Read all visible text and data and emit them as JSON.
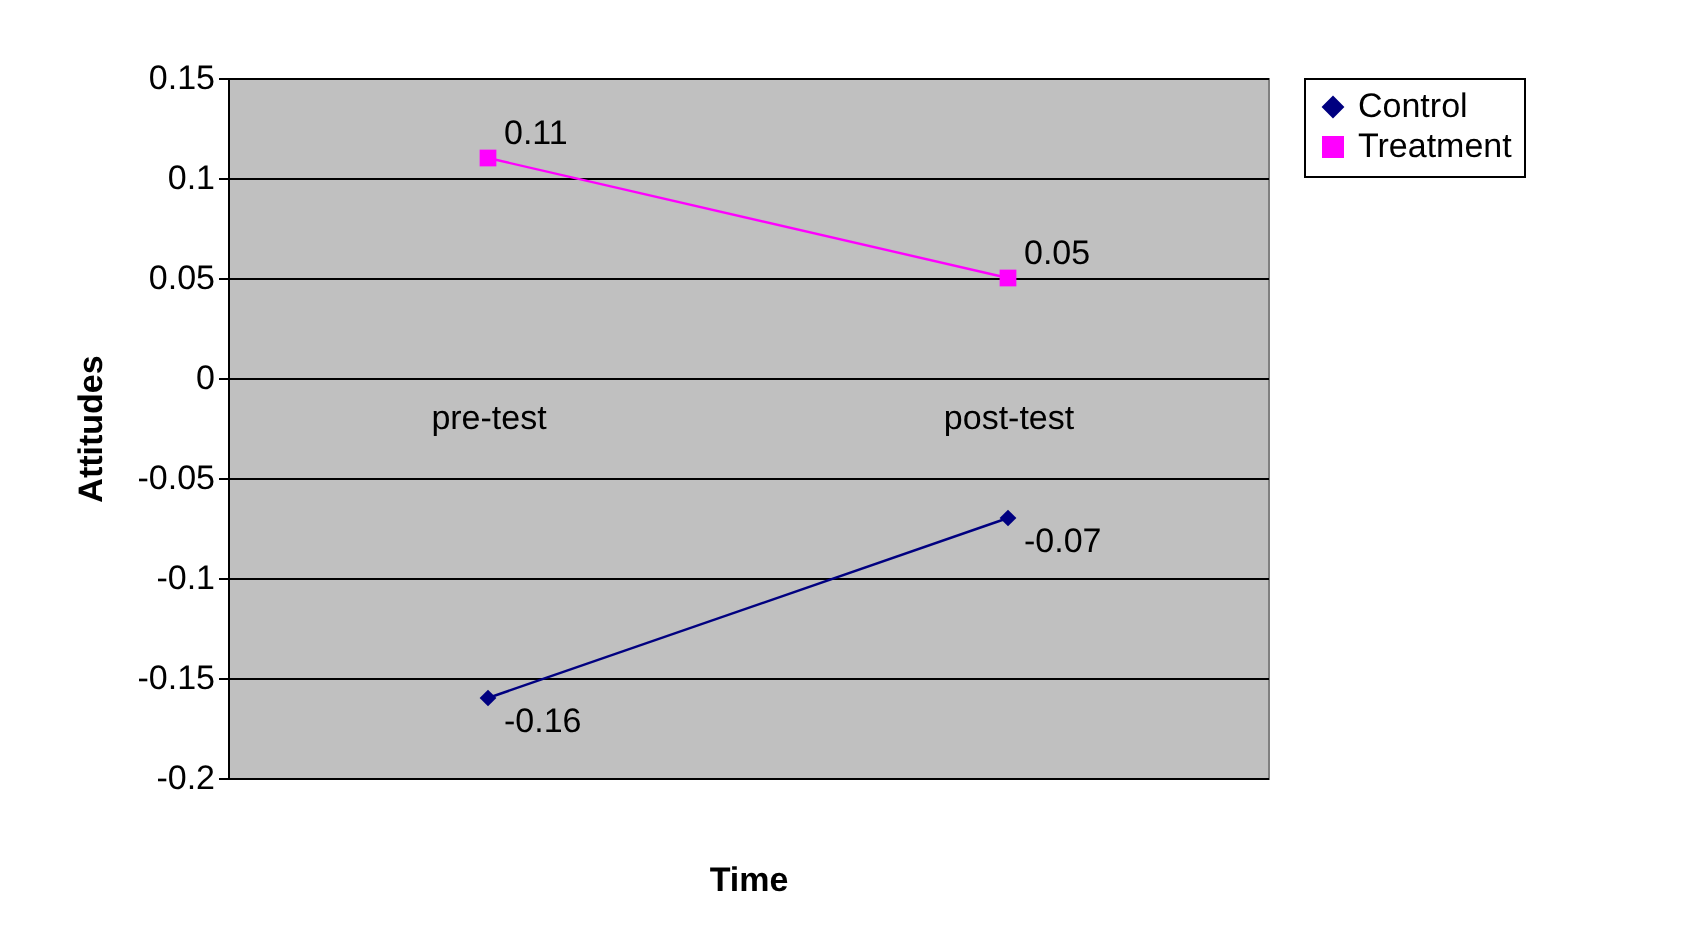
{
  "chart_data": {
    "type": "line",
    "xlabel": "Time",
    "ylabel": "Attitudes",
    "categories": [
      "pre-test",
      "post-test"
    ],
    "series": [
      {
        "name": "Control",
        "color": "#000080",
        "marker": "diamond",
        "values": [
          -0.16,
          -0.07
        ]
      },
      {
        "name": "Treatment",
        "color": "#ff00ff",
        "marker": "square",
        "values": [
          0.11,
          0.05
        ]
      }
    ],
    "ylim": [
      -0.2,
      0.15
    ],
    "yticks": [
      -0.2,
      -0.15,
      -0.1,
      -0.05,
      0,
      0.05,
      0.1,
      0.15
    ],
    "grid": "y",
    "legend": "right",
    "data_labels": true,
    "line_style": "solid"
  }
}
